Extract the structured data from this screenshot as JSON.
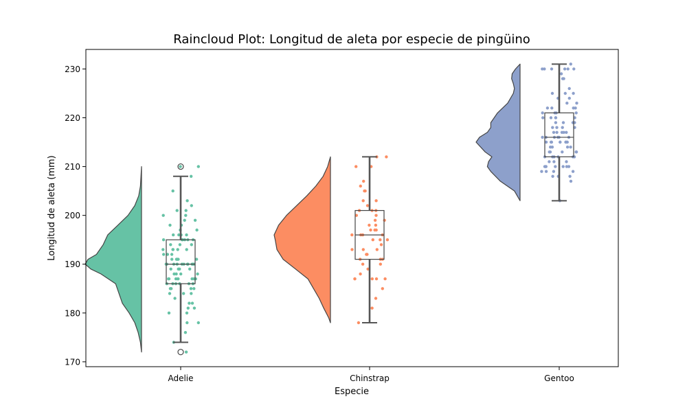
{
  "chart_data": {
    "type": "raincloud",
    "title": "Raincloud Plot: Longitud de aleta por especie de pingüino",
    "xlabel": "Especie",
    "ylabel": "Longitud de aleta (mm)",
    "ylim": [
      169,
      234
    ],
    "yticks": [
      170,
      180,
      190,
      200,
      210,
      220,
      230
    ],
    "grid": false,
    "categories": [
      "Adelie",
      "Chinstrap",
      "Gentoo"
    ],
    "colors": {
      "Adelie": "#66c2a5",
      "Chinstrap": "#fc8d62",
      "Gentoo": "#8da0cb",
      "box_edge": "#444444",
      "whisker": "#555555"
    },
    "series": [
      {
        "name": "Adelie",
        "box": {
          "min": 174,
          "q1": 186,
          "median": 190,
          "q3": 195,
          "max": 208
        },
        "outliers": [
          172,
          210
        ],
        "density": [
          [
            172,
            0.0
          ],
          [
            174,
            0.02
          ],
          [
            176,
            0.06
          ],
          [
            178,
            0.12
          ],
          [
            180,
            0.22
          ],
          [
            182,
            0.34
          ],
          [
            184,
            0.4
          ],
          [
            186,
            0.46
          ],
          [
            188,
            0.72
          ],
          [
            189,
            0.9
          ],
          [
            190,
            1.0
          ],
          [
            191,
            0.95
          ],
          [
            192,
            0.8
          ],
          [
            194,
            0.68
          ],
          [
            196,
            0.6
          ],
          [
            198,
            0.42
          ],
          [
            200,
            0.24
          ],
          [
            202,
            0.12
          ],
          [
            204,
            0.05
          ],
          [
            206,
            0.02
          ],
          [
            208,
            0.01
          ],
          [
            210,
            0.0
          ]
        ],
        "points": [
          172,
          174,
          176,
          178,
          178,
          180,
          180,
          181,
          181,
          182,
          182,
          183,
          184,
          184,
          184,
          185,
          185,
          185,
          185,
          186,
          186,
          186,
          186,
          186,
          186,
          187,
          187,
          187,
          187,
          187,
          187,
          187,
          187,
          188,
          188,
          188,
          188,
          189,
          189,
          189,
          189,
          190,
          190,
          190,
          190,
          190,
          190,
          190,
          190,
          190,
          190,
          190,
          190,
          191,
          191,
          191,
          191,
          191,
          191,
          192,
          192,
          192,
          193,
          193,
          193,
          193,
          193,
          194,
          194,
          194,
          195,
          195,
          195,
          195,
          195,
          195,
          196,
          196,
          196,
          196,
          197,
          197,
          198,
          198,
          199,
          199,
          200,
          200,
          201,
          201,
          202,
          203,
          205,
          208,
          210,
          210
        ]
      },
      {
        "name": "Chinstrap",
        "box": {
          "min": 178,
          "q1": 191,
          "median": 196,
          "q3": 201,
          "max": 212
        },
        "outliers": [],
        "density": [
          [
            178,
            0.0
          ],
          [
            179,
            0.03
          ],
          [
            181,
            0.12
          ],
          [
            183,
            0.2
          ],
          [
            185,
            0.3
          ],
          [
            187,
            0.4
          ],
          [
            189,
            0.62
          ],
          [
            191,
            0.84
          ],
          [
            193,
            0.95
          ],
          [
            195,
            0.98
          ],
          [
            196,
            1.0
          ],
          [
            198,
            0.92
          ],
          [
            200,
            0.78
          ],
          [
            202,
            0.6
          ],
          [
            204,
            0.42
          ],
          [
            206,
            0.26
          ],
          [
            208,
            0.13
          ],
          [
            210,
            0.05
          ],
          [
            212,
            0.0
          ]
        ],
        "points": [
          178,
          181,
          183,
          185,
          187,
          187,
          187,
          187,
          187,
          188,
          189,
          190,
          190,
          191,
          191,
          191,
          192,
          192,
          193,
          193,
          193,
          194,
          195,
          195,
          195,
          196,
          196,
          196,
          196,
          197,
          197,
          197,
          198,
          198,
          199,
          199,
          200,
          200,
          201,
          201,
          201,
          202,
          203,
          203,
          205,
          205,
          206,
          207,
          210,
          210,
          212,
          212
        ]
      },
      {
        "name": "Gentoo",
        "box": {
          "min": 203,
          "q1": 212,
          "median": 216,
          "q3": 221,
          "max": 231
        },
        "outliers": [],
        "density": [
          [
            203,
            0.0
          ],
          [
            205,
            0.1
          ],
          [
            207,
            0.35
          ],
          [
            209,
            0.52
          ],
          [
            210,
            0.58
          ],
          [
            211,
            0.56
          ],
          [
            212,
            0.5
          ],
          [
            213,
            0.62
          ],
          [
            215,
            0.78
          ],
          [
            216,
            0.72
          ],
          [
            217,
            0.58
          ],
          [
            218,
            0.52
          ],
          [
            219,
            0.52
          ],
          [
            221,
            0.4
          ],
          [
            223,
            0.22
          ],
          [
            225,
            0.12
          ],
          [
            226,
            0.1
          ],
          [
            227,
            0.12
          ],
          [
            228,
            0.15
          ],
          [
            229,
            0.14
          ],
          [
            230,
            0.08
          ],
          [
            231,
            0.0
          ]
        ],
        "points": [
          203,
          207,
          208,
          208,
          208,
          208,
          209,
          209,
          209,
          209,
          210,
          210,
          210,
          210,
          210,
          210,
          210,
          210,
          211,
          211,
          211,
          212,
          212,
          212,
          212,
          212,
          212,
          213,
          213,
          213,
          213,
          213,
          214,
          214,
          214,
          214,
          215,
          215,
          215,
          215,
          215,
          215,
          215,
          215,
          216,
          216,
          216,
          216,
          216,
          216,
          217,
          217,
          217,
          217,
          217,
          218,
          218,
          218,
          218,
          219,
          219,
          219,
          219,
          220,
          220,
          220,
          220,
          220,
          221,
          221,
          221,
          221,
          222,
          222,
          222,
          222,
          223,
          223,
          224,
          224,
          225,
          225,
          225,
          226,
          228,
          228,
          229,
          230,
          230,
          230,
          230,
          230,
          230,
          231
        ]
      }
    ]
  }
}
